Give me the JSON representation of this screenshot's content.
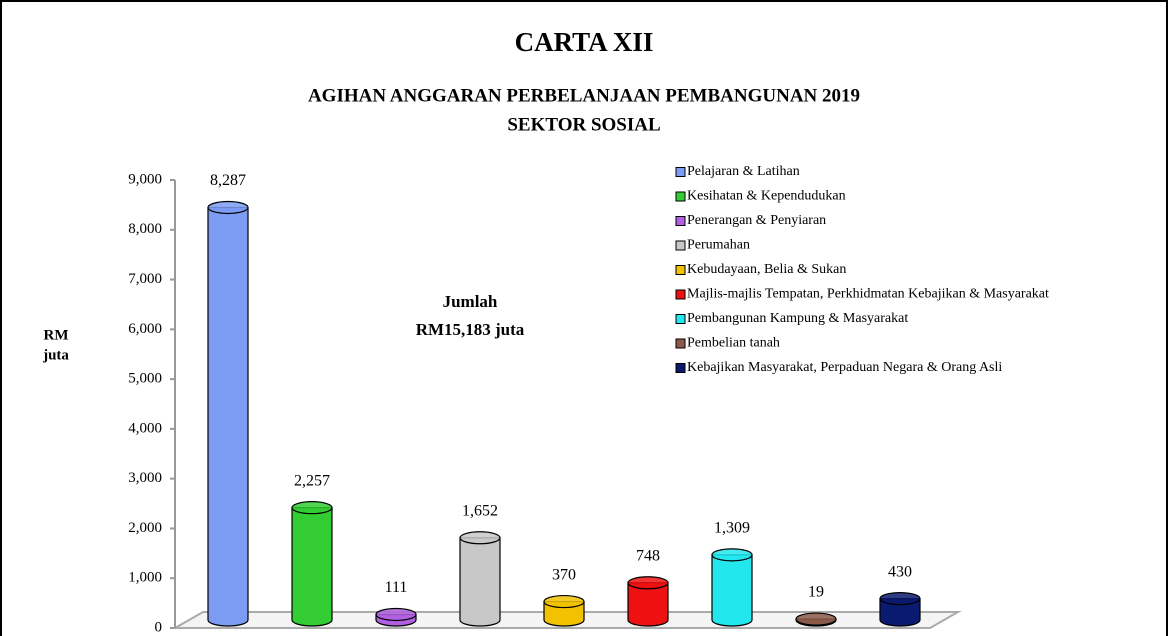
{
  "chart_data": {
    "type": "bar",
    "title": "CARTA XII",
    "subtitle": [
      "AGIHAN ANGGARAN PERBELANJAAN PEMBANGUNAN 2019",
      "SEKTOR SOSIAL"
    ],
    "ylabel": [
      "RM",
      "juta"
    ],
    "annotation": [
      "Jumlah",
      "RM15,183 juta"
    ],
    "categories": [
      "Pelajaran & Latihan",
      "Kesihatan & Kependudukan",
      "Penerangan & Penyiaran",
      "Perumahan",
      "Kebudayaan, Belia & Sukan",
      "Majlis-majlis Tempatan, Perkhidmatan Kebajikan & Masyarakat",
      "Pembangunan Kampung & Masyarakat",
      "Pembelian tanah",
      "Kebajikan Masyarakat, Perpaduan Negara & Orang Asli"
    ],
    "values": [
      8287,
      2257,
      111,
      1652,
      370,
      748,
      1309,
      19,
      430
    ],
    "value_labels": [
      "8,287",
      "2,257",
      "111",
      "1,652",
      "370",
      "748",
      "1,309",
      "19",
      "430"
    ],
    "colors": [
      "#7b9cf2",
      "#33cc33",
      "#b060e0",
      "#c8c8c8",
      "#f2c200",
      "#ee1111",
      "#22e8ee",
      "#8b5a4a",
      "#0a1a6e"
    ],
    "ylim": [
      0,
      9000
    ],
    "yticks": [
      0,
      {
        "value": 1000,
        "label": "1,000"
      },
      {
        "value": 2000,
        "label": "2,000"
      },
      {
        "value": 3000,
        "label": "3,000"
      },
      {
        "value": 4000,
        "label": "4,000"
      },
      {
        "value": 5000,
        "label": "5,000"
      },
      {
        "value": 6000,
        "label": "6,000"
      },
      {
        "value": 7000,
        "label": "7,000"
      },
      {
        "value": 8000,
        "label": "8,000"
      },
      {
        "value": 9000,
        "label": "9,000"
      }
    ],
    "legend": "top-right"
  }
}
